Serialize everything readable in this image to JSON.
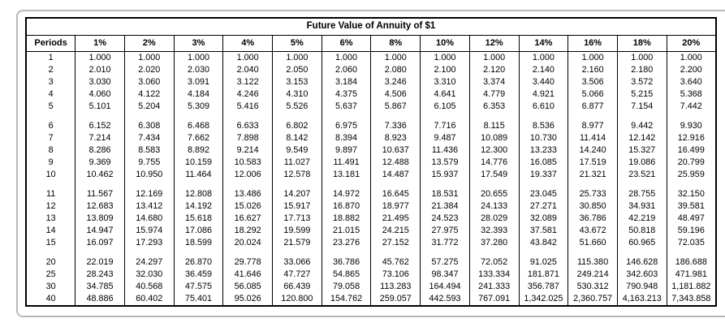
{
  "colors": {
    "frame_border": "#b8b8b8",
    "table_border": "#000000"
  },
  "table": {
    "title": "Future Value of Annuity of $1",
    "columns": [
      "Periods",
      "1%",
      "2%",
      "3%",
      "4%",
      "5%",
      "6%",
      "8%",
      "10%",
      "12%",
      "14%",
      "16%",
      "18%",
      "20%"
    ],
    "row_groups": [
      {
        "rows": [
          [
            "1",
            "1.000",
            "1.000",
            "1.000",
            "1.000",
            "1.000",
            "1.000",
            "1.000",
            "1.000",
            "1.000",
            "1.000",
            "1.000",
            "1.000",
            "1.000"
          ],
          [
            "2",
            "2.010",
            "2.020",
            "2.030",
            "2.040",
            "2.050",
            "2.060",
            "2.080",
            "2.100",
            "2.120",
            "2.140",
            "2.160",
            "2.180",
            "2.200"
          ],
          [
            "3",
            "3.030",
            "3.060",
            "3.091",
            "3.122",
            "3.153",
            "3.184",
            "3.246",
            "3.310",
            "3.374",
            "3.440",
            "3.506",
            "3.572",
            "3.640"
          ],
          [
            "4",
            "4.060",
            "4.122",
            "4.184",
            "4.246",
            "4.310",
            "4.375",
            "4.506",
            "4.641",
            "4.779",
            "4.921",
            "5.066",
            "5.215",
            "5.368"
          ],
          [
            "5",
            "5.101",
            "5.204",
            "5.309",
            "5.416",
            "5.526",
            "5.637",
            "5.867",
            "6.105",
            "6.353",
            "6.610",
            "6.877",
            "7.154",
            "7.442"
          ]
        ]
      },
      {
        "rows": [
          [
            "6",
            "6.152",
            "6.308",
            "6.468",
            "6.633",
            "6.802",
            "6.975",
            "7.336",
            "7.716",
            "8.115",
            "8.536",
            "8.977",
            "9.442",
            "9.930"
          ],
          [
            "7",
            "7.214",
            "7.434",
            "7.662",
            "7.898",
            "8.142",
            "8.394",
            "8.923",
            "9.487",
            "10.089",
            "10.730",
            "11.414",
            "12.142",
            "12.916"
          ],
          [
            "8",
            "8.286",
            "8.583",
            "8.892",
            "9.214",
            "9.549",
            "9.897",
            "10.637",
            "11.436",
            "12.300",
            "13.233",
            "14.240",
            "15.327",
            "16.499"
          ],
          [
            "9",
            "9.369",
            "9.755",
            "10.159",
            "10.583",
            "11.027",
            "11.491",
            "12.488",
            "13.579",
            "14.776",
            "16.085",
            "17.519",
            "19.086",
            "20.799"
          ],
          [
            "10",
            "10.462",
            "10.950",
            "11.464",
            "12.006",
            "12.578",
            "13.181",
            "14.487",
            "15.937",
            "17.549",
            "19.337",
            "21.321",
            "23.521",
            "25.959"
          ]
        ]
      },
      {
        "rows": [
          [
            "11",
            "11.567",
            "12.169",
            "12.808",
            "13.486",
            "14.207",
            "14.972",
            "16.645",
            "18.531",
            "20.655",
            "23.045",
            "25.733",
            "28.755",
            "32.150"
          ],
          [
            "12",
            "12.683",
            "13.412",
            "14.192",
            "15.026",
            "15.917",
            "16.870",
            "18.977",
            "21.384",
            "24.133",
            "27.271",
            "30.850",
            "34.931",
            "39.581"
          ],
          [
            "13",
            "13.809",
            "14.680",
            "15.618",
            "16.627",
            "17.713",
            "18.882",
            "21.495",
            "24.523",
            "28.029",
            "32.089",
            "36.786",
            "42.219",
            "48.497"
          ],
          [
            "14",
            "14.947",
            "15.974",
            "17.086",
            "18.292",
            "19.599",
            "21.015",
            "24.215",
            "27.975",
            "32.393",
            "37.581",
            "43.672",
            "50.818",
            "59.196"
          ],
          [
            "15",
            "16.097",
            "17.293",
            "18.599",
            "20.024",
            "21.579",
            "23.276",
            "27.152",
            "31.772",
            "37.280",
            "43.842",
            "51.660",
            "60.965",
            "72.035"
          ]
        ]
      },
      {
        "rows": [
          [
            "20",
            "22.019",
            "24.297",
            "26.870",
            "29.778",
            "33.066",
            "36.786",
            "45.762",
            "57.275",
            "72.052",
            "91.025",
            "115.380",
            "146.628",
            "186.688"
          ],
          [
            "25",
            "28.243",
            "32.030",
            "36.459",
            "41.646",
            "47.727",
            "54.865",
            "73.106",
            "98.347",
            "133.334",
            "181.871",
            "249.214",
            "342.603",
            "471.981"
          ],
          [
            "30",
            "34.785",
            "40.568",
            "47.575",
            "56.085",
            "66.439",
            "79.058",
            "113.283",
            "164.494",
            "241.333",
            "356.787",
            "530.312",
            "790.948",
            "1,181.882"
          ],
          [
            "40",
            "48.886",
            "60.402",
            "75.401",
            "95.026",
            "120.800",
            "154.762",
            "259.057",
            "442.593",
            "767.091",
            "1,342.025",
            "2,360.757",
            "4,163.213",
            "7,343.858"
          ]
        ]
      }
    ]
  }
}
